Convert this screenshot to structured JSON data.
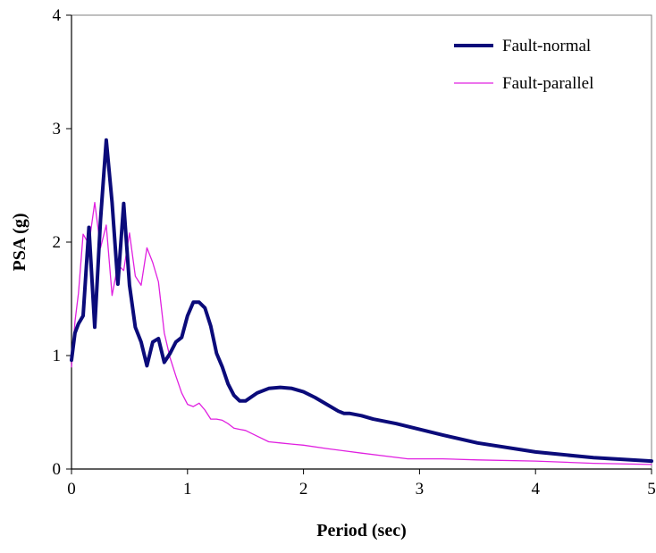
{
  "chart_data": {
    "type": "line",
    "title": "",
    "xlabel": "Period (sec)",
    "ylabel": "PSA (g)",
    "xlim": [
      0,
      5
    ],
    "ylim": [
      0,
      4
    ],
    "xticks": [
      0,
      1,
      2,
      3,
      4,
      5
    ],
    "yticks": [
      0,
      1,
      2,
      3,
      4
    ],
    "grid": false,
    "legend_position": "top-right",
    "series": [
      {
        "name": "Fault-normal",
        "color": "#0b0b7a",
        "style": "thick",
        "x": [
          0.0,
          0.03,
          0.06,
          0.1,
          0.15,
          0.2,
          0.25,
          0.3,
          0.35,
          0.4,
          0.45,
          0.5,
          0.55,
          0.6,
          0.65,
          0.7,
          0.75,
          0.8,
          0.85,
          0.9,
          0.95,
          1.0,
          1.05,
          1.1,
          1.15,
          1.2,
          1.25,
          1.3,
          1.35,
          1.4,
          1.45,
          1.5,
          1.6,
          1.7,
          1.8,
          1.9,
          2.0,
          2.1,
          2.2,
          2.3,
          2.35,
          2.4,
          2.5,
          2.6,
          2.8,
          3.0,
          3.2,
          3.5,
          4.0,
          4.5,
          5.0
        ],
        "y": [
          0.96,
          1.2,
          1.28,
          1.35,
          2.13,
          1.25,
          2.2,
          2.9,
          2.35,
          1.63,
          2.34,
          1.62,
          1.25,
          1.12,
          0.91,
          1.12,
          1.15,
          0.94,
          1.02,
          1.12,
          1.16,
          1.35,
          1.47,
          1.47,
          1.42,
          1.26,
          1.02,
          0.9,
          0.75,
          0.65,
          0.6,
          0.6,
          0.67,
          0.71,
          0.72,
          0.71,
          0.68,
          0.63,
          0.57,
          0.51,
          0.49,
          0.49,
          0.47,
          0.44,
          0.4,
          0.35,
          0.3,
          0.23,
          0.15,
          0.1,
          0.07
        ]
      },
      {
        "name": "Fault-parallel",
        "color": "#e020e0",
        "style": "thin",
        "x": [
          0.0,
          0.03,
          0.06,
          0.1,
          0.15,
          0.2,
          0.25,
          0.3,
          0.35,
          0.4,
          0.45,
          0.5,
          0.55,
          0.6,
          0.65,
          0.7,
          0.75,
          0.8,
          0.85,
          0.9,
          0.95,
          1.0,
          1.05,
          1.1,
          1.15,
          1.2,
          1.25,
          1.3,
          1.35,
          1.4,
          1.45,
          1.5,
          1.6,
          1.7,
          1.8,
          1.9,
          2.0,
          2.2,
          2.5,
          2.9,
          3.2,
          3.5,
          4.0,
          4.5,
          5.0
        ],
        "y": [
          0.9,
          1.3,
          1.55,
          2.07,
          1.98,
          2.35,
          1.95,
          2.15,
          1.53,
          1.8,
          1.75,
          2.08,
          1.7,
          1.62,
          1.95,
          1.82,
          1.65,
          1.2,
          0.98,
          0.82,
          0.67,
          0.57,
          0.55,
          0.58,
          0.52,
          0.44,
          0.44,
          0.43,
          0.4,
          0.36,
          0.35,
          0.34,
          0.29,
          0.24,
          0.23,
          0.22,
          0.21,
          0.18,
          0.14,
          0.09,
          0.09,
          0.08,
          0.07,
          0.05,
          0.04
        ]
      }
    ]
  }
}
